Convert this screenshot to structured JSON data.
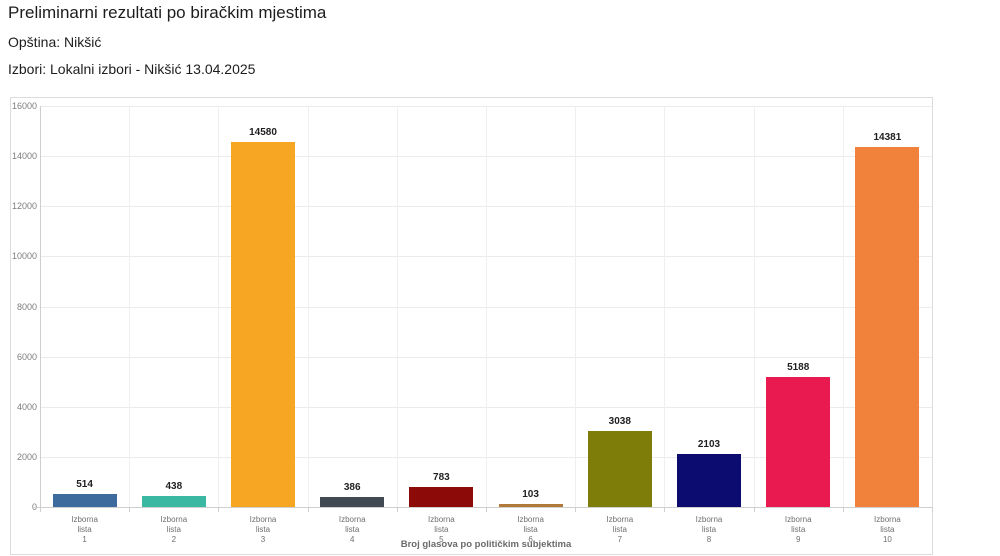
{
  "header": {
    "title": "Preliminarni rezultati po biračkim mjestima",
    "municipality_line": "Opština: Nikšić",
    "election_line": "Izbori: Lokalni izbori - Nikšić 13.04.2025"
  },
  "chart_data": {
    "type": "bar",
    "title": "",
    "xlabel": "Broj glasova po političkim subjektima",
    "ylabel": "",
    "ylim": [
      0,
      16000
    ],
    "yticks": [
      0,
      2000,
      4000,
      6000,
      8000,
      10000,
      12000,
      14000,
      16000
    ],
    "grid": true,
    "legend": "none",
    "categories": [
      "Izborna lista 1",
      "Izborna lista 2",
      "Izborna lista 3",
      "Izborna lista 4",
      "Izborna lista 5",
      "Izborna lista 6",
      "Izborna lista 7",
      "Izborna lista 8",
      "Izborna lista 9",
      "Izborna lista 10"
    ],
    "values": [
      514,
      438,
      14580,
      386,
      783,
      103,
      3038,
      2103,
      5188,
      14381
    ],
    "bar_colors": [
      "#3e6b9e",
      "#3bb8a2",
      "#f6a623",
      "#414a52",
      "#8c0b08",
      "#b07b3a",
      "#7f7d0a",
      "#0c0c70",
      "#e91a50",
      "#f0823c"
    ]
  }
}
